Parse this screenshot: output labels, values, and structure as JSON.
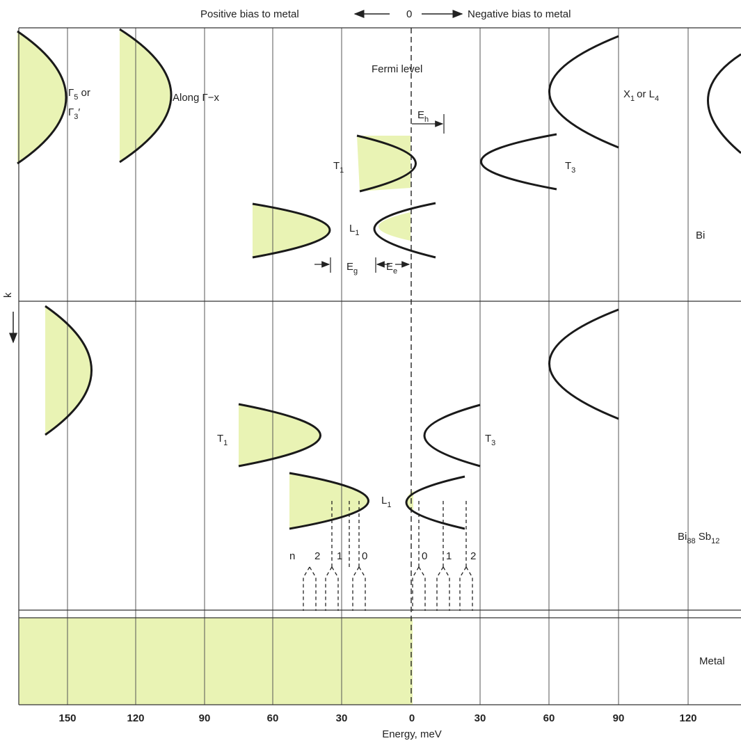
{
  "header": {
    "positive_bias": "Positive bias to metal",
    "zero": "0",
    "negative_bias": "Negative bias to metal"
  },
  "axis": {
    "x_label": "Energy, meV",
    "y_label": "k",
    "ticks": [
      "150",
      "120",
      "90",
      "60",
      "30",
      "0",
      "30",
      "60",
      "90",
      "120"
    ]
  },
  "top_panel": {
    "material": "Bi",
    "fermi_label": "Fermi level",
    "gamma5_line1_main": "Γ",
    "gamma5_line1_sub": "5",
    "gamma5_line1_tail": " or",
    "gamma5_line2_main": "Γ",
    "gamma5_line2_sub": "3",
    "gamma5_line2_tail": "′",
    "along_label": "Along Γ−x",
    "x1_main": "X",
    "x1_sub": "1",
    "x1_mid": "or L",
    "x1_sub2": "4",
    "t1_main": "T",
    "t1_sub": "1",
    "t3_main": "T",
    "t3_sub": "3",
    "l1_main": "L",
    "l1_sub": "1",
    "eh_main": "E",
    "eh_sub": "h",
    "eg_main": "E",
    "eg_sub": "g",
    "ee_main": "E",
    "ee_sub": "e"
  },
  "middle_panel": {
    "material_main": "Bi",
    "material_sub1": "88",
    "material_mid": " Sb",
    "material_sub2": "12",
    "t1_main": "T",
    "t1_sub": "1",
    "t3_main": "T",
    "t3_sub": "3",
    "l1_main": "L",
    "l1_sub": "1",
    "landau_n": "n",
    "landau_left": [
      "2",
      "1",
      "0"
    ],
    "landau_right": [
      "0",
      "1",
      "2"
    ]
  },
  "bottom_panel": {
    "material": "Metal"
  },
  "colors": {
    "fill": "#e9f3b4",
    "line": "#1a1a1a",
    "grid": "#444444"
  }
}
